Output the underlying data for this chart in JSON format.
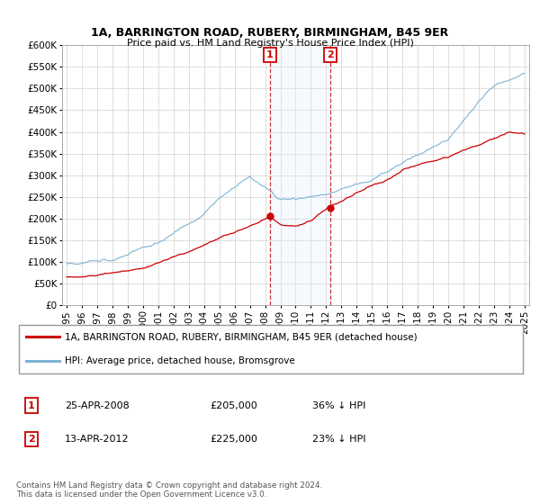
{
  "title": "1A, BARRINGTON ROAD, RUBERY, BIRMINGHAM, B45 9ER",
  "subtitle": "Price paid vs. HM Land Registry's House Price Index (HPI)",
  "legend_line1": "1A, BARRINGTON ROAD, RUBERY, BIRMINGHAM, B45 9ER (detached house)",
  "legend_line2": "HPI: Average price, detached house, Bromsgrove",
  "annotation1_date": "25-APR-2008",
  "annotation1_price": "£205,000",
  "annotation1_hpi": "36% ↓ HPI",
  "annotation2_date": "13-APR-2012",
  "annotation2_price": "£225,000",
  "annotation2_hpi": "23% ↓ HPI",
  "footnote": "Contains HM Land Registry data © Crown copyright and database right 2024.\nThis data is licensed under the Open Government Licence v3.0.",
  "red_color": "#cc0000",
  "blue_color": "#7fb3d3",
  "shaded_color": "#ddeeff",
  "annotation_box_color": "#cc0000",
  "ylim": [
    0,
    600000
  ],
  "yticks": [
    0,
    50000,
    100000,
    150000,
    200000,
    250000,
    300000,
    350000,
    400000,
    450000,
    500000,
    550000,
    600000
  ],
  "sale1_year": 2008.32,
  "sale1_price": 205000,
  "sale2_year": 2012.29,
  "sale2_price": 225000
}
